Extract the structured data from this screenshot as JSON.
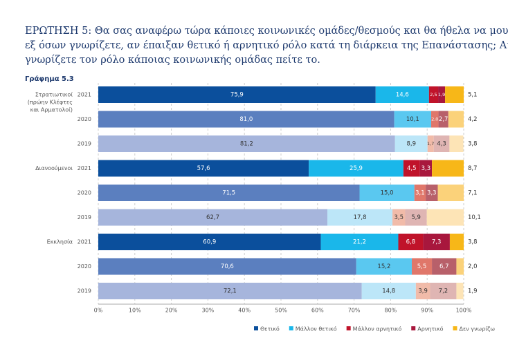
{
  "chart_data": {
    "type": "stacked_hbar",
    "title_lines": [
      "ΕΡΩΤΗΣΗ 5: Θα σας αναφέρω τώρα κάποιες κοινωνικές ομάδες/θεσμούς και θα ήθελα να μου πείτε,",
      "εξ όσων γνωρίζετε, αν έπαιξαν θετικό ή αρνητικό ρόλο κατά τη διάρκεια της Επανάστασης; Αν δεν",
      "γνωρίζετε τον ρόλο κάποιας κοινωνικής ομάδας πείτε το."
    ],
    "subtitle": "Γράφημα 5.3",
    "groups": [
      [
        "Στρατιωτικοί",
        "(πρώην Κλέφτες",
        "και Αρματολοί)"
      ],
      [
        "Διανοούμενοι"
      ],
      [
        "Εκκλησία"
      ]
    ],
    "categories": [
      "2021",
      "2020",
      "2019",
      "2021",
      "2020",
      "2019",
      "2021",
      "2020",
      "2019"
    ],
    "series": [
      {
        "name": "Θετικό",
        "color": "#0b4f9c",
        "colors": [
          "#0b4f9c",
          "#5b7fbf",
          "#a6b5dc",
          "#0b4f9c",
          "#5b7fbf",
          "#a6b5dc",
          "#0b4f9c",
          "#5b7fbf",
          "#a6b5dc"
        ],
        "values": [
          75.9,
          81.0,
          81.2,
          57.6,
          71.5,
          62.7,
          60.9,
          70.6,
          72.1
        ],
        "value_labels": [
          "75,9",
          "81,0",
          "81,2",
          "57,6",
          "71,5",
          "62,7",
          "60,9",
          "70,6",
          "72,1"
        ]
      },
      {
        "name": "Μάλλον θετικό",
        "color": "#1ab7ea",
        "colors": [
          "#1ab7ea",
          "#5ac8f0",
          "#bce6f8",
          "#1ab7ea",
          "#5ac8f0",
          "#bce6f8",
          "#1ab7ea",
          "#5ac8f0",
          "#bce6f8"
        ],
        "values": [
          14.6,
          10.1,
          8.9,
          25.9,
          15.0,
          17.8,
          21.2,
          15.2,
          14.8
        ],
        "value_labels": [
          "14,6",
          "10,1",
          "8,9",
          "25,9",
          "15,0",
          "17,8",
          "21,2",
          "15,2",
          "14,8"
        ]
      },
      {
        "name": "Μάλλον αρνητικό",
        "color": "#c0132a",
        "colors": [
          "#c0132a",
          "#e0776a",
          "#f1bba9",
          "#c0132a",
          "#e0776a",
          "#f1bba9",
          "#c0132a",
          "#e0776a",
          "#f1bba9"
        ],
        "values": [
          2.5,
          2.0,
          1.7,
          4.5,
          3.1,
          3.5,
          6.8,
          5.5,
          3.9
        ],
        "value_labels": [
          "2,5",
          "2,0",
          "1,7",
          "4,5",
          "3,1",
          "3,5",
          "6,8",
          "5,5",
          "3,9"
        ]
      },
      {
        "name": "Αρνητικό",
        "color": "#a8173d",
        "colors": [
          "#a8173d",
          "#b8606a",
          "#dfb5b3",
          "#a8173d",
          "#b8606a",
          "#dfb5b3",
          "#a8173d",
          "#b8606a",
          "#dfb5b3"
        ],
        "values": [
          1.9,
          2.7,
          4.3,
          3.3,
          3.3,
          5.9,
          7.3,
          6.7,
          7.2
        ],
        "value_labels": [
          "1,9",
          "2,7",
          "4,3",
          "3,3",
          "3,3",
          "5,9",
          "7,3",
          "6,7",
          "7,2"
        ]
      },
      {
        "name": "Δεν γνωρίζω",
        "color": "#f7b718",
        "colors": [
          "#f7b718",
          "#fbd27a",
          "#fde4b6",
          "#f7b718",
          "#fbd27a",
          "#fde4b6",
          "#f7b718",
          "#fbd27a",
          "#fde4b6"
        ],
        "values": [
          5.1,
          4.2,
          3.8,
          8.7,
          7.1,
          10.1,
          3.8,
          2.0,
          1.9
        ],
        "value_labels": [
          "5,1",
          "4,2",
          "3,8",
          "8,7",
          "7,1",
          "10,1",
          "3,8",
          "2,0",
          "1,9"
        ]
      }
    ],
    "xlim": [
      0,
      100
    ],
    "xticks": [
      {
        "value": 0,
        "label": "0%"
      },
      {
        "value": 10,
        "label": "10%"
      },
      {
        "value": 20,
        "label": "20%"
      },
      {
        "value": 30,
        "label": "30%"
      },
      {
        "value": 40,
        "label": "40%"
      },
      {
        "value": 50,
        "label": "50%"
      },
      {
        "value": 60,
        "label": "60%"
      },
      {
        "value": 70,
        "label": "70%"
      },
      {
        "value": 80,
        "label": "80%"
      },
      {
        "value": 90,
        "label": "90%"
      },
      {
        "value": 100,
        "label": "100%"
      }
    ],
    "grid": true
  }
}
